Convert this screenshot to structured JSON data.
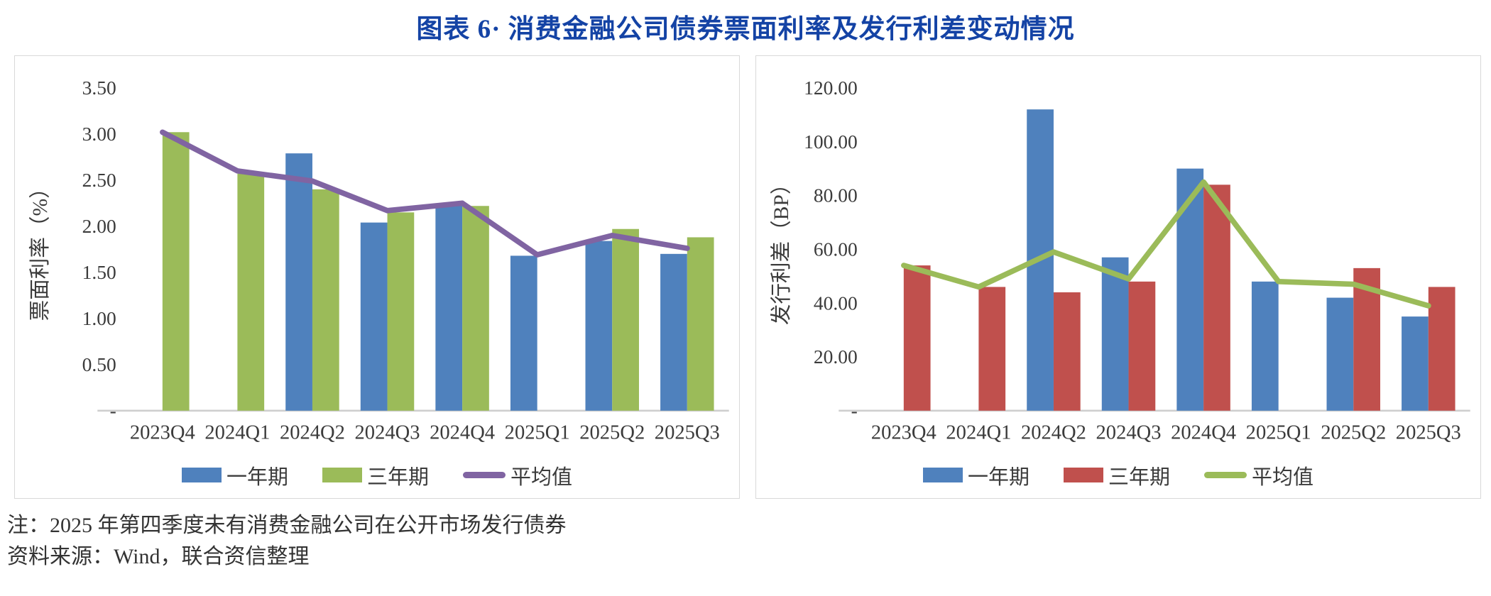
{
  "page_title": "图表 6· 消费金融公司债券票面利率及发行利差变动情况",
  "styles": {
    "title_color": "#1443A5",
    "axis_text_color": "#3B3B3B",
    "baseline_color": "#CFCFCF",
    "panel_border_color": "#D9D9D9"
  },
  "notes": {
    "note1": "注：2025 年第四季度未有消费金融公司在公开市场发行债券",
    "source": "资料来源：Wind，联合资信整理"
  },
  "chart_data": [
    {
      "type": "bar",
      "name": "coupon-rate-chart",
      "title": "",
      "xlabel": "",
      "ylabel": "票面利率（%）",
      "categories": [
        "2023Q4",
        "2024Q1",
        "2024Q2",
        "2024Q3",
        "2024Q4",
        "2025Q1",
        "2025Q2",
        "2025Q3"
      ],
      "series": [
        {
          "name": "一年期",
          "type": "bar",
          "color": "#4F81BD",
          "values": [
            null,
            null,
            2.79,
            2.04,
            2.23,
            1.68,
            1.84,
            1.7
          ]
        },
        {
          "name": "三年期",
          "type": "bar",
          "color": "#9BBB59",
          "values": [
            3.02,
            2.57,
            2.4,
            2.15,
            2.22,
            null,
            1.97,
            1.88
          ]
        },
        {
          "name": "平均值",
          "type": "line",
          "color": "#8064A2",
          "values": [
            3.02,
            2.6,
            2.49,
            2.17,
            2.25,
            1.69,
            1.9,
            1.76
          ]
        }
      ],
      "ylim": [
        0,
        3.5
      ],
      "yticks": [
        {
          "value": 3.5,
          "label": "3.50"
        },
        {
          "value": 3.0,
          "label": "3.00"
        },
        {
          "value": 2.5,
          "label": "2.50"
        },
        {
          "value": 2.0,
          "label": "2.00"
        },
        {
          "value": 1.5,
          "label": "1.50"
        },
        {
          "value": 1.0,
          "label": "1.00"
        },
        {
          "value": 0.5,
          "label": "0.50"
        },
        {
          "value": 0,
          "label": "-"
        }
      ],
      "grid": false,
      "legend_position": "bottom"
    },
    {
      "type": "bar",
      "name": "issuance-spread-chart",
      "title": "",
      "xlabel": "",
      "ylabel": "发行利差（BP）",
      "categories": [
        "2023Q4",
        "2024Q1",
        "2024Q2",
        "2024Q3",
        "2024Q4",
        "2025Q1",
        "2025Q2",
        "2025Q3"
      ],
      "series": [
        {
          "name": "一年期",
          "type": "bar",
          "color": "#4F81BD",
          "values": [
            null,
            null,
            112,
            57,
            90,
            48,
            42,
            35
          ]
        },
        {
          "name": "三年期",
          "type": "bar",
          "color": "#C0504D",
          "values": [
            54,
            46,
            44,
            48,
            84,
            null,
            53,
            46
          ]
        },
        {
          "name": "平均值",
          "type": "line",
          "color": "#9BBB59",
          "values": [
            54,
            46,
            59,
            49,
            85,
            48,
            47,
            39
          ]
        }
      ],
      "ylim": [
        0,
        120
      ],
      "yticks": [
        {
          "value": 120,
          "label": "120.00"
        },
        {
          "value": 100,
          "label": "100.00"
        },
        {
          "value": 80,
          "label": "80.00"
        },
        {
          "value": 60,
          "label": "60.00"
        },
        {
          "value": 40,
          "label": "40.00"
        },
        {
          "value": 20,
          "label": "20.00"
        },
        {
          "value": 0,
          "label": "-"
        }
      ],
      "grid": false,
      "legend_position": "bottom"
    }
  ]
}
